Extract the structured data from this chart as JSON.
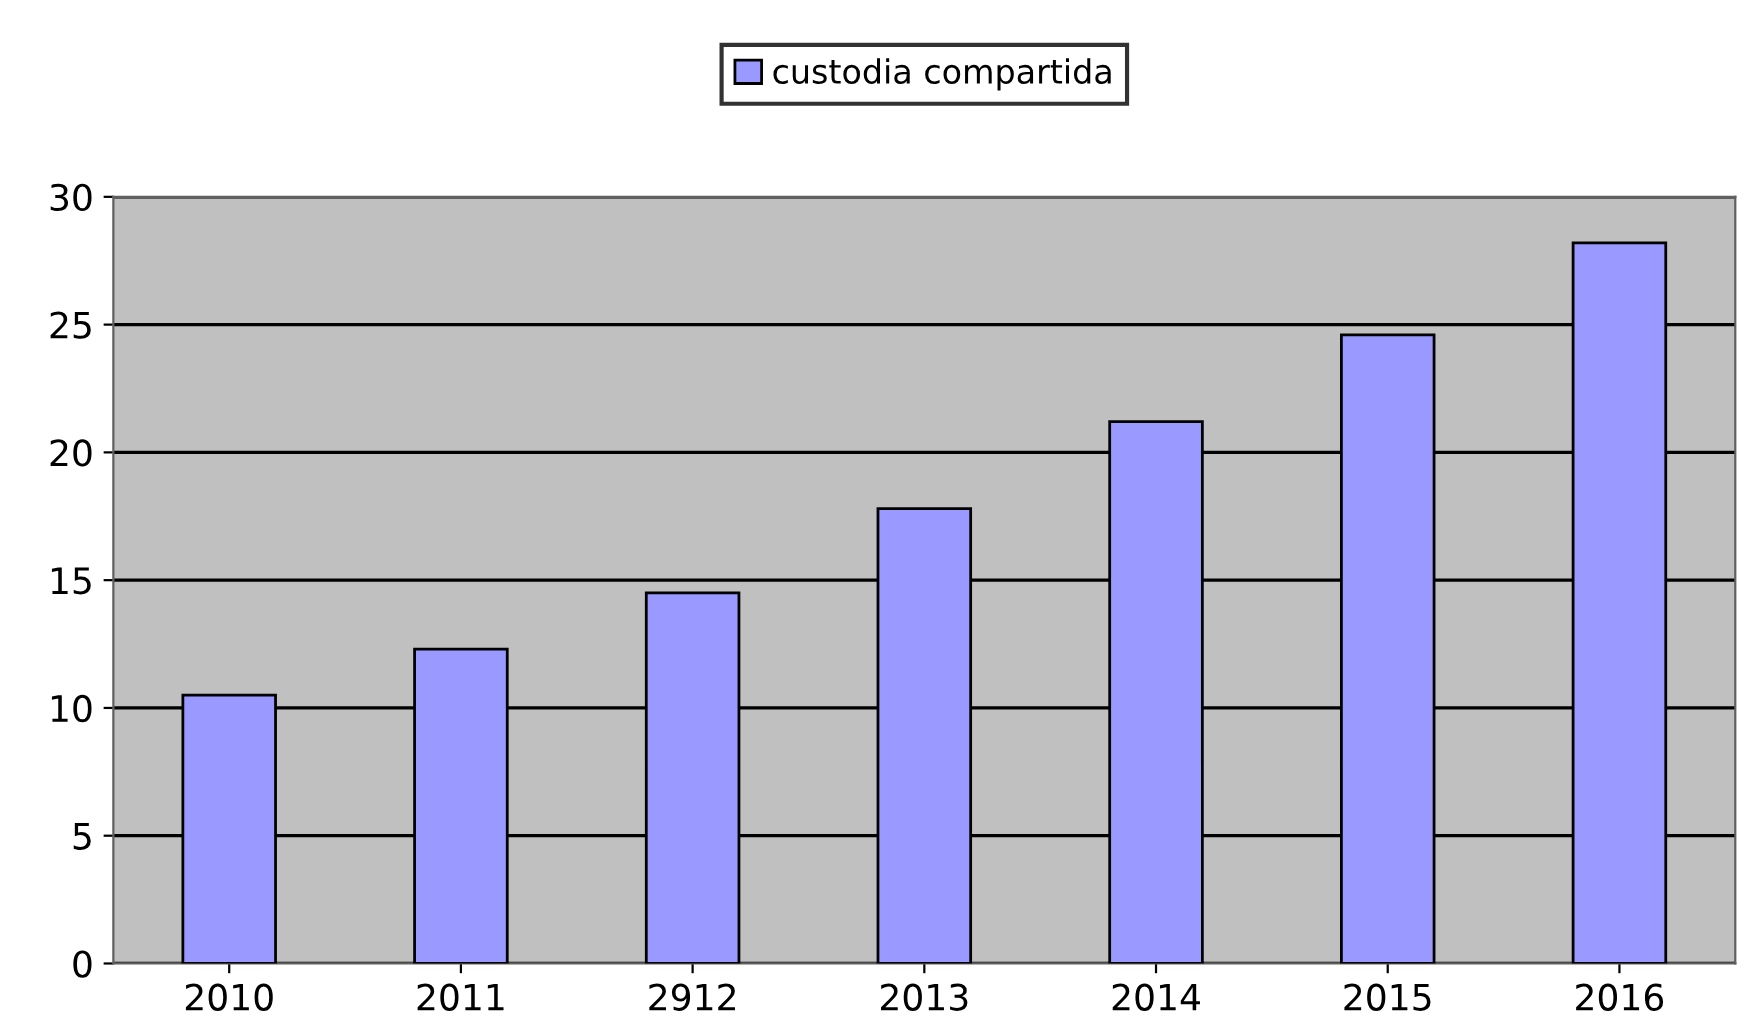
{
  "chart_data": {
    "type": "bar",
    "categories": [
      "2010",
      "2011",
      "2912",
      "2013",
      "2014",
      "2015",
      "2016"
    ],
    "series": [
      {
        "name": "custodia compartida",
        "color": "#9999ff",
        "values": [
          10.5,
          12.3,
          14.5,
          17.8,
          21.2,
          24.6,
          28.2
        ]
      }
    ],
    "ylim": [
      0,
      30
    ],
    "yticks": [
      0,
      5,
      10,
      15,
      20,
      25,
      30
    ],
    "grid": "y",
    "legend": "top"
  }
}
